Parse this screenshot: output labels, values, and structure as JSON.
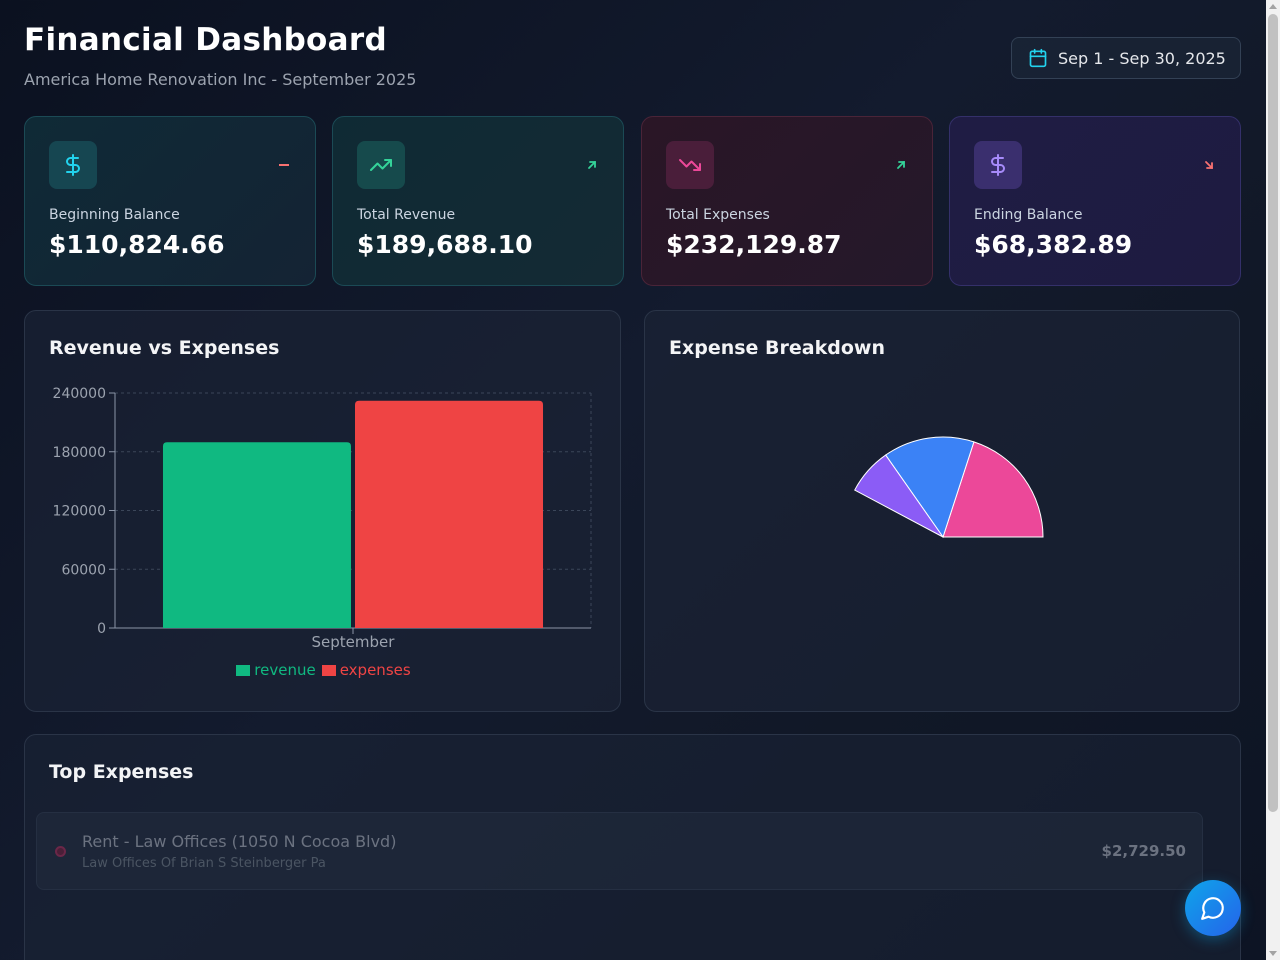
{
  "header": {
    "title": "Financial Dashboard",
    "subtitle": "America Home Renovation Inc - September 2025",
    "date_range": "Sep 1 - Sep 30, 2025"
  },
  "cards": [
    {
      "label": "Beginning Balance",
      "value": "$110,824.66",
      "icon": "dollar-icon",
      "trend_icon": "neutral-dash-icon"
    },
    {
      "label": "Total Revenue",
      "value": "$189,688.10",
      "icon": "trending-up-icon",
      "trend_icon": "arrow-up-right-icon"
    },
    {
      "label": "Total Expenses",
      "value": "$232,129.87",
      "icon": "trending-down-icon",
      "trend_icon": "arrow-up-right-icon"
    },
    {
      "label": "Ending Balance",
      "value": "$68,382.89",
      "icon": "dollar-icon",
      "trend_icon": "arrow-down-right-icon"
    }
  ],
  "revenue_chart": {
    "title": "Revenue vs Expenses"
  },
  "expense_breakdown": {
    "title": "Expense Breakdown"
  },
  "top_expenses": {
    "title": "Top Expenses",
    "items": [
      {
        "name": "Rent - Law Offices (1050 N Cocoa Blvd)",
        "vendor": "Law Offices Of Brian S Steinberger Pa",
        "amount": "$2,729.50"
      }
    ]
  },
  "colors": {
    "revenue": "#10b981",
    "expenses": "#ef4444",
    "accent": "#22d3ee",
    "pink": "#ec4899",
    "blue": "#3b82f6",
    "purple": "#8b5cf6"
  },
  "chart_data": [
    {
      "type": "bar",
      "title": "Revenue vs Expenses",
      "categories": [
        "September"
      ],
      "series": [
        {
          "name": "revenue",
          "values": [
            189688.1
          ]
        },
        {
          "name": "expenses",
          "values": [
            232129.87
          ]
        }
      ],
      "yticks": [
        "0",
        "60000",
        "120000",
        "180000",
        "240000"
      ],
      "ylim": [
        0,
        240000
      ],
      "grid": true,
      "legend": "bottom"
    },
    {
      "type": "pie",
      "title": "Expense Breakdown",
      "start_angle": 0,
      "end_angle": 152,
      "slices": [
        {
          "value": 72,
          "color": "#ec4899"
        },
        {
          "value": 53,
          "color": "#3b82f6"
        },
        {
          "value": 27,
          "color": "#8b5cf6"
        }
      ]
    }
  ]
}
